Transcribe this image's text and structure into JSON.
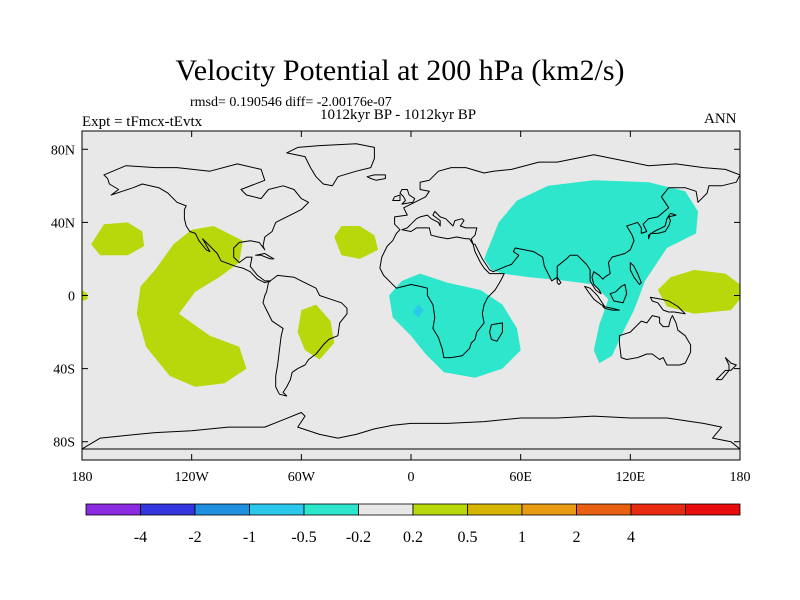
{
  "chart_data": {
    "type": "heatmap",
    "title": "Velocity Potential at 200 hPa (km2/s)",
    "stats": "rmsd= 0.190546 diff= -2.00176e-07",
    "subtitle_left": "Expt = tFmcx-tEvtx",
    "subtitle_center": "1012kyr BP - 1012kyr BP",
    "subtitle_right": "ANN",
    "xlabel": "",
    "ylabel": "",
    "xlim": [
      -180,
      180
    ],
    "ylim": [
      -90,
      90
    ],
    "x_ticks": [
      {
        "value": -180,
        "label": "180"
      },
      {
        "value": -120,
        "label": "120W"
      },
      {
        "value": -60,
        "label": "60W"
      },
      {
        "value": 0,
        "label": "0"
      },
      {
        "value": 60,
        "label": "60E"
      },
      {
        "value": 120,
        "label": "120E"
      },
      {
        "value": 180,
        "label": "180"
      }
    ],
    "y_ticks": [
      {
        "value": 80,
        "label": "80N"
      },
      {
        "value": 40,
        "label": "40N"
      },
      {
        "value": 0,
        "label": "0"
      },
      {
        "value": -40,
        "label": "40S"
      },
      {
        "value": -80,
        "label": "80S"
      }
    ],
    "colorbar": {
      "colors": [
        "#8a2be2",
        "#3535e0",
        "#1f8fe0",
        "#2cc8ec",
        "#2ee6cc",
        "#e8e8e8",
        "#b9d80c",
        "#d6b400",
        "#e89a10",
        "#e86010",
        "#e82a12",
        "#e80c0c"
      ],
      "labels": [
        "-4",
        "-2",
        "-1",
        "-0.5",
        "-0.2",
        "0.2",
        "0.5",
        "1",
        "2",
        "4"
      ]
    },
    "field_regions": [
      {
        "name": "asia-pacific-negative",
        "level": "-0.5 to -0.2",
        "color": "#2ee6cc",
        "lon_range": [
          40,
          157
        ],
        "lat_range": [
          -37,
          63
        ]
      },
      {
        "name": "africa-negative",
        "level": "-0.5 to -0.2",
        "color": "#2ee6cc",
        "lon_range": [
          -12,
          60
        ],
        "lat_range": [
          -45,
          12
        ]
      },
      {
        "name": "africa-core",
        "level": "-1 to -0.5",
        "color": "#2cc8ec",
        "lon_range": [
          1,
          7
        ],
        "lat_range": [
          -12,
          -5
        ]
      },
      {
        "name": "east-pacific-positive",
        "level": "0.2 to 0.5",
        "color": "#b9d80c",
        "lon_range": [
          -150,
          -90
        ],
        "lat_range": [
          -50,
          38
        ]
      },
      {
        "name": "south-america-positive",
        "level": "0.2 to 0.5",
        "color": "#b9d80c",
        "lon_range": [
          -62,
          -42
        ],
        "lat_range": [
          -35,
          -5
        ]
      },
      {
        "name": "north-pacific-positive",
        "level": "0.2 to 0.5",
        "color": "#b9d80c",
        "lon_range": [
          -175,
          -145
        ],
        "lat_range": [
          22,
          40
        ]
      },
      {
        "name": "north-atlantic-positive",
        "level": "0.2 to 0.5",
        "color": "#b9d80c",
        "lon_range": [
          -42,
          -18
        ],
        "lat_range": [
          20,
          38
        ]
      },
      {
        "name": "west-pacific-positive",
        "level": "0.2 to 0.5",
        "color": "#b9d80c",
        "lon_range": [
          135,
          180
        ],
        "lat_range": [
          -10,
          14
        ]
      },
      {
        "name": "dateline-positive",
        "level": "0.2 to 0.5",
        "color": "#b9d80c",
        "lon_range": [
          -180,
          -177
        ],
        "lat_range": [
          -3,
          3
        ]
      }
    ]
  }
}
